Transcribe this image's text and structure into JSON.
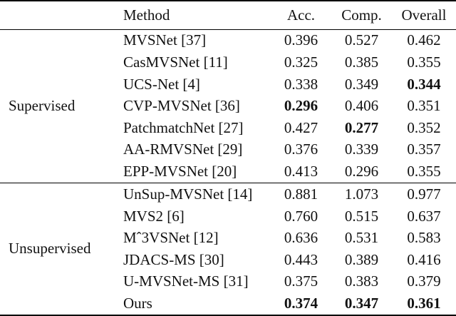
{
  "table": {
    "headers": {
      "category": "",
      "method": "Method",
      "acc": "Acc.",
      "comp": "Comp.",
      "overall": "Overall"
    },
    "groups": [
      {
        "label": "Supervised",
        "rows": [
          {
            "method": "MVSNet [37]",
            "acc": "0.396",
            "comp": "0.527",
            "overall": "0.462",
            "bold": []
          },
          {
            "method": "CasMVSNet [11]",
            "acc": "0.325",
            "comp": "0.385",
            "overall": "0.355",
            "bold": []
          },
          {
            "method": "UCS-Net [4]",
            "acc": "0.338",
            "comp": "0.349",
            "overall": "0.344",
            "bold": [
              "overall"
            ]
          },
          {
            "method": "CVP-MVSNet [36]",
            "acc": "0.296",
            "comp": "0.406",
            "overall": "0.351",
            "bold": [
              "acc"
            ]
          },
          {
            "method": "PatchmatchNet [27]",
            "acc": "0.427",
            "comp": "0.277",
            "overall": "0.352",
            "bold": [
              "comp"
            ]
          },
          {
            "method": "AA-RMVSNet [29]",
            "acc": "0.376",
            "comp": "0.339",
            "overall": "0.357",
            "bold": []
          },
          {
            "method": "EPP-MVSNet [20]",
            "acc": "0.413",
            "comp": "0.296",
            "overall": "0.355",
            "bold": []
          }
        ]
      },
      {
        "label": "Unsupervised",
        "rows": [
          {
            "method": "UnSup-MVSNet [14]",
            "acc": "0.881",
            "comp": "1.073",
            "overall": "0.977",
            "bold": []
          },
          {
            "method": "MVS2 [6]",
            "acc": "0.760",
            "comp": "0.515",
            "overall": "0.637",
            "bold": []
          },
          {
            "method": "Mˆ3VSNet [12]",
            "acc": "0.636",
            "comp": "0.531",
            "overall": "0.583",
            "bold": []
          },
          {
            "method": "JDACS-MS [30]",
            "acc": "0.443",
            "comp": "0.389",
            "overall": "0.416",
            "bold": []
          },
          {
            "method": "U-MVSNet-MS [31]",
            "acc": "0.375",
            "comp": "0.383",
            "overall": "0.379",
            "bold": []
          },
          {
            "method": "Ours",
            "acc": "0.374",
            "comp": "0.347",
            "overall": "0.361",
            "bold": [
              "acc",
              "comp",
              "overall"
            ]
          }
        ]
      }
    ],
    "colors": {
      "text": "#111111",
      "rule": "#000000",
      "background": "#ffffff"
    }
  }
}
